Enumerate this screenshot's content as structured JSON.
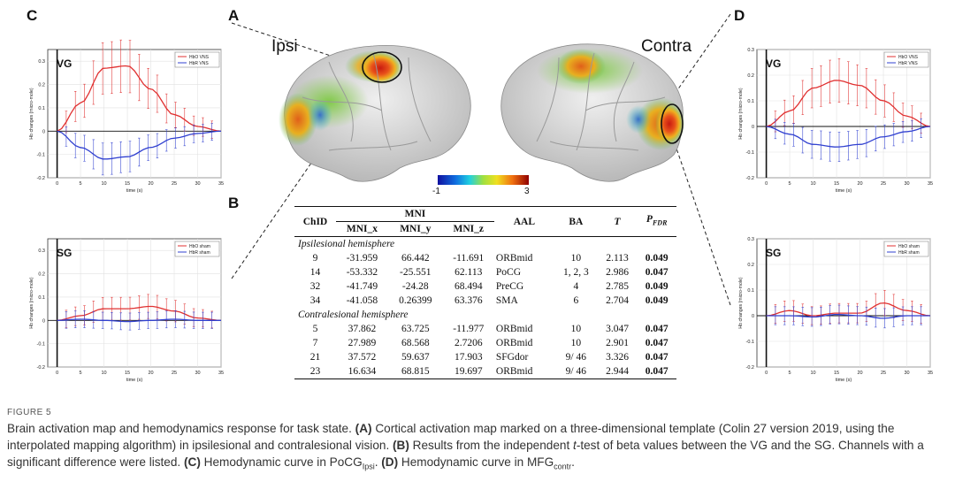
{
  "panels": {
    "a": "A",
    "b": "B",
    "c": "C",
    "d": "D"
  },
  "brain": {
    "ipsi_label": "Ipsi",
    "contra_label": "Contra",
    "colorbar_min": "-1",
    "colorbar_max": "3"
  },
  "plots": {
    "c_vg": {
      "group": "VG",
      "legend": [
        "HbO VNS",
        "HbR VNS"
      ]
    },
    "c_sg": {
      "group": "SG",
      "legend": [
        "HbO sham",
        "HbR sham"
      ]
    },
    "d_vg": {
      "group": "VG",
      "legend": [
        "HbO VNS",
        "HbR VNS"
      ]
    },
    "d_sg": {
      "group": "SG",
      "legend": [
        "HbO sham",
        "HbR sham"
      ]
    },
    "ylabel": "Hb changes (micro-mole)",
    "xlabel": "time (s)"
  },
  "chart_data": [
    {
      "type": "line",
      "panel": "C-VG",
      "x": [
        0,
        5,
        10,
        15,
        20,
        25,
        30,
        35
      ],
      "xlim": [
        -2,
        35
      ],
      "ylim": [
        -0.2,
        0.35
      ],
      "xticks": [
        0,
        5,
        10,
        15,
        20,
        25,
        30,
        35
      ],
      "yticks": [
        -0.2,
        -0.1,
        0,
        0.1,
        0.2,
        0.3
      ],
      "xlabel": "time (s)",
      "ylabel": "Hb changes (micro-mole)",
      "series": [
        {
          "name": "HbO VNS",
          "color": "#e03030",
          "values": [
            0,
            0.12,
            0.27,
            0.28,
            0.18,
            0.07,
            0.02,
            0
          ]
        },
        {
          "name": "HbR VNS",
          "color": "#3040d0",
          "values": [
            0,
            -0.07,
            -0.12,
            -0.11,
            -0.07,
            -0.03,
            -0.01,
            0
          ]
        }
      ],
      "group_label": "VG",
      "legend": "top-right"
    },
    {
      "type": "line",
      "panel": "C-SG",
      "x": [
        0,
        5,
        10,
        15,
        20,
        25,
        30,
        35
      ],
      "xlim": [
        -2,
        35
      ],
      "ylim": [
        -0.2,
        0.35
      ],
      "xticks": [
        0,
        5,
        10,
        15,
        20,
        25,
        30,
        35
      ],
      "yticks": [
        -0.2,
        -0.1,
        0,
        0.1,
        0.2,
        0.3
      ],
      "xlabel": "time (s)",
      "ylabel": "Hb changes (micro-mole)",
      "series": [
        {
          "name": "HbO sham",
          "color": "#e03030",
          "values": [
            0,
            0.02,
            0.05,
            0.05,
            0.06,
            0.04,
            0.01,
            0
          ]
        },
        {
          "name": "HbR sham",
          "color": "#3040d0",
          "values": [
            0,
            0.005,
            0.0,
            -0.005,
            0.0,
            0.005,
            0.0,
            0
          ]
        }
      ],
      "group_label": "SG",
      "legend": "top-right"
    },
    {
      "type": "line",
      "panel": "D-VG",
      "x": [
        0,
        5,
        10,
        15,
        20,
        25,
        30,
        35
      ],
      "xlim": [
        -2,
        35
      ],
      "ylim": [
        -0.2,
        0.3
      ],
      "xticks": [
        0,
        5,
        10,
        15,
        20,
        25,
        30,
        35
      ],
      "yticks": [
        -0.2,
        -0.1,
        0,
        0.1,
        0.2,
        0.3
      ],
      "xlabel": "time (s)",
      "ylabel": "Hb changes (micro-mole)",
      "series": [
        {
          "name": "HbO VNS",
          "color": "#e03030",
          "values": [
            0,
            0.06,
            0.15,
            0.18,
            0.16,
            0.1,
            0.04,
            0
          ]
        },
        {
          "name": "HbR VNS",
          "color": "#3040d0",
          "values": [
            0,
            -0.03,
            -0.07,
            -0.08,
            -0.07,
            -0.04,
            -0.02,
            0
          ]
        }
      ],
      "group_label": "VG",
      "legend": "top-right"
    },
    {
      "type": "line",
      "panel": "D-SG",
      "x": [
        0,
        5,
        10,
        15,
        20,
        25,
        30,
        35
      ],
      "xlim": [
        -2,
        35
      ],
      "ylim": [
        -0.2,
        0.3
      ],
      "xticks": [
        0,
        5,
        10,
        15,
        20,
        25,
        30,
        35
      ],
      "yticks": [
        -0.2,
        -0.1,
        0,
        0.1,
        0.2,
        0.3
      ],
      "xlabel": "time (s)",
      "ylabel": "Hb changes (micro-mole)",
      "series": [
        {
          "name": "HbO sham",
          "color": "#e03030",
          "values": [
            0,
            0.02,
            0.0,
            0.01,
            0.01,
            0.05,
            0.02,
            0
          ]
        },
        {
          "name": "HbR sham",
          "color": "#3040d0",
          "values": [
            0,
            0.0,
            -0.005,
            0.005,
            0.0,
            -0.01,
            0.0,
            0
          ]
        }
      ],
      "group_label": "SG",
      "legend": "top-right"
    }
  ],
  "table": {
    "headers": {
      "chid": "ChID",
      "mni": "MNI",
      "mni_x": "MNI_x",
      "mni_y": "MNI_y",
      "mni_z": "MNI_z",
      "aal": "AAL",
      "ba": "BA",
      "t": "T",
      "p": "P",
      "p_sub": "FDR"
    },
    "sections": [
      {
        "title": "Ipsilesional hemisphere",
        "rows": [
          [
            "9",
            "-31.959",
            "66.442",
            "-11.691",
            "ORBmid",
            "10",
            "2.113",
            "0.049"
          ],
          [
            "14",
            "-53.332",
            "-25.551",
            "62.113",
            "PoCG",
            "1, 2, 3",
            "2.986",
            "0.047"
          ],
          [
            "32",
            "-41.749",
            "-24.28",
            "68.494",
            "PreCG",
            "4",
            "2.785",
            "0.049"
          ],
          [
            "34",
            "-41.058",
            "0.26399",
            "63.376",
            "SMA",
            "6",
            "2.704",
            "0.049"
          ]
        ]
      },
      {
        "title": "Contralesional hemisphere",
        "rows": [
          [
            "5",
            "37.862",
            "63.725",
            "-11.977",
            "ORBmid",
            "10",
            "3.047",
            "0.047"
          ],
          [
            "7",
            "27.989",
            "68.568",
            "2.7206",
            "ORBmid",
            "10",
            "2.901",
            "0.047"
          ],
          [
            "21",
            "37.572",
            "59.637",
            "17.903",
            "SFGdor",
            "9/ 46",
            "3.326",
            "0.047"
          ],
          [
            "23",
            "16.634",
            "68.815",
            "19.697",
            "ORBmid",
            "9/ 46",
            "2.944",
            "0.047"
          ]
        ]
      }
    ]
  },
  "figure": {
    "label": "FIGURE 5",
    "caption_t1": "Brain activation map and hemodynamics response for task state. ",
    "caption_a": "(A)",
    "caption_t2": " Cortical activation map marked on a three-dimensional template (Colin 27 version 2019, using the interpolated mapping algorithm) in ipsilesional and contralesional vision. ",
    "caption_b": "(B)",
    "caption_t3": " Results from the independent ",
    "caption_t_italic": "t",
    "caption_t4": "-test of beta values between the VG and the SG. Channels with a significant difference were listed. ",
    "caption_c": "(C)",
    "caption_t5": " Hemodynamic curve in PoCG",
    "caption_sub_ipsi": "Ipsi",
    "caption_t6": ". ",
    "caption_d": "(D)",
    "caption_t7": " Hemodynamic curve in MFG",
    "caption_sub_contr": "contr",
    "caption_t8": "."
  }
}
